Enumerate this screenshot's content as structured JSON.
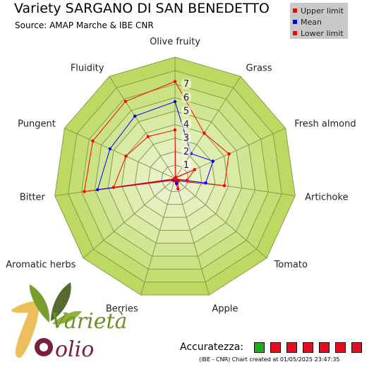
{
  "header": {
    "title": "Variety SARGANO DI SAN BENEDETTO",
    "source": "Source: AMAP Marche & IBE CNR"
  },
  "legend": [
    {
      "label": "Upper limit",
      "color": "#ff0000"
    },
    {
      "label": "Mean",
      "color": "#0000ff"
    },
    {
      "label": "Lower limit",
      "color": "#ff0000"
    }
  ],
  "chart_data": {
    "type": "radar",
    "categories": [
      "Olive fruity",
      "Grass",
      "Fresh almond",
      "Artichoke",
      "Tomato",
      "Apple",
      "Berries",
      "Aromatic herbs",
      "Bitter",
      "Pungent",
      "Fluidity"
    ],
    "rmax": 9,
    "ticks": [
      1,
      2,
      3,
      4,
      5,
      6,
      7
    ],
    "series": [
      {
        "name": "Upper limit",
        "color": "#ff0000",
        "values": [
          7.2,
          4.0,
          4.4,
          3.7,
          0.3,
          0.8,
          0.15,
          0.2,
          6.8,
          6.7,
          6.8
        ]
      },
      {
        "name": "Mean",
        "color": "#0000ff",
        "values": [
          5.7,
          2.2,
          3.1,
          2.3,
          0.15,
          0.4,
          0.1,
          0.1,
          5.8,
          5.3,
          5.5
        ]
      },
      {
        "name": "Lower limit",
        "color": "#ff0000",
        "values": [
          3.6,
          0.1,
          1.6,
          0.9,
          0.1,
          0.1,
          0.05,
          0.05,
          4.6,
          4.0,
          3.7
        ]
      }
    ]
  },
  "accuracy": {
    "label": "Accuratezza:",
    "boxes": [
      "#22aa22",
      "#dd1122",
      "#dd1122",
      "#dd1122",
      "#dd1122",
      "#dd1122",
      "#dd1122"
    ]
  },
  "footer": {
    "credit": "(IBE - CNR) Chart created at 01/05/2025 23:47:35"
  },
  "logo": {
    "text_top": "Varietà",
    "text_bottom": "olio"
  }
}
